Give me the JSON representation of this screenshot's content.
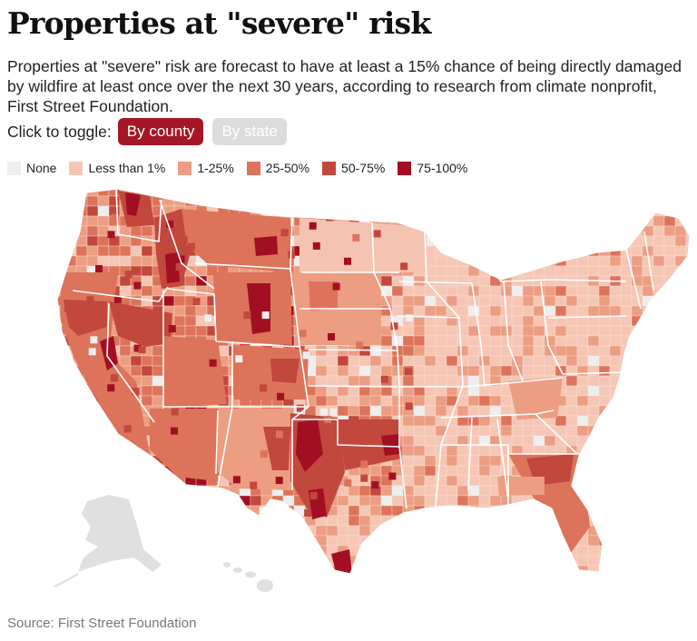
{
  "header": {
    "title": "Properties at \"severe\" risk",
    "subtitle": "Properties at \"severe\" risk are forecast to have at least a 15% chance of being directly damaged by wildfire at least once over the next 30 years, according to research from climate nonprofit, First Street Foundation."
  },
  "toggle": {
    "label": "Click to toggle:",
    "options": [
      {
        "label": "By county",
        "active": true
      },
      {
        "label": "By state",
        "active": false
      }
    ]
  },
  "legend": [
    {
      "label": "None",
      "color": "#eeeeee"
    },
    {
      "label": "Less than 1%",
      "color": "#f6c6b5"
    },
    {
      "label": "1-25%",
      "color": "#ec9d82"
    },
    {
      "label": "25-50%",
      "color": "#dc735a"
    },
    {
      "label": "50-75%",
      "color": "#c2473d"
    },
    {
      "label": "75-100%",
      "color": "#a30f22"
    }
  ],
  "colors": {
    "accent": "#a51726",
    "state_border": "#ffffff",
    "territory": "#e0e0e0"
  },
  "source": "Source: First Street Foundation"
}
